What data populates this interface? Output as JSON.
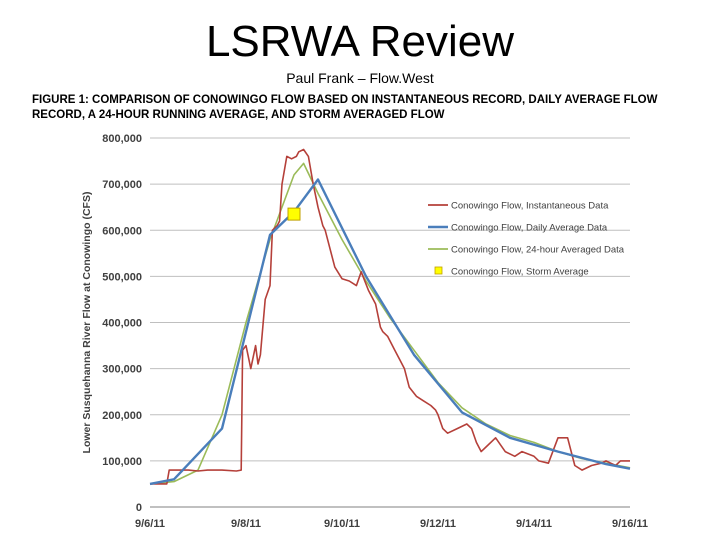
{
  "title": "LSRWA Review",
  "subtitle": "Paul Frank – Flow.West",
  "caption": "FIGURE 1: COMPARISON OF CONOWINGO FLOW BASED ON INSTANTANEOUS RECORD, DAILY AVERAGE FLOW RECORD, A 24-HOUR RUNNING AVERAGE, AND STORM AVERAGED FLOW",
  "chart_data": {
    "type": "line",
    "title": "",
    "xlabel": "",
    "ylabel": "Lower Susquehanna River Flow at Conowingo (CFS)",
    "xlim": [
      6,
      16
    ],
    "ylim": [
      0,
      800000
    ],
    "x_ticks": [
      6,
      8,
      10,
      12,
      14,
      16
    ],
    "x_tick_labels": [
      "9/6/11",
      "9/8/11",
      "9/10/11",
      "9/12/11",
      "9/14/11",
      "9/16/11"
    ],
    "y_ticks": [
      0,
      100000,
      200000,
      300000,
      400000,
      500000,
      600000,
      700000,
      800000
    ],
    "y_tick_labels": [
      "0",
      "100,000",
      "200,000",
      "300,000",
      "400,000",
      "500,000",
      "600,000",
      "700,000",
      "800,000"
    ],
    "grid": "horizontal",
    "legend_position": "right",
    "series": [
      {
        "name": "Conowingo Flow, Instantaneous Data",
        "color": "#b5403a",
        "style": "line",
        "x": [
          6.0,
          6.2,
          6.35,
          6.4,
          6.5,
          6.8,
          7.0,
          7.2,
          7.5,
          7.8,
          7.9,
          7.93,
          8.0,
          8.1,
          8.2,
          8.25,
          8.3,
          8.4,
          8.5,
          8.55,
          8.65,
          8.7,
          8.75,
          8.85,
          8.95,
          9.05,
          9.1,
          9.2,
          9.3,
          9.4,
          9.5,
          9.6,
          9.65,
          9.75,
          9.85,
          10.0,
          10.15,
          10.3,
          10.4,
          10.55,
          10.7,
          10.8,
          10.85,
          10.95,
          11.1,
          11.2,
          11.3,
          11.4,
          11.55,
          11.7,
          11.85,
          11.95,
          12.0,
          12.1,
          12.2,
          12.4,
          12.6,
          12.7,
          12.8,
          12.9,
          13.0,
          13.2,
          13.4,
          13.6,
          13.75,
          14.0,
          14.1,
          14.3,
          14.5,
          14.7,
          14.85,
          15.0,
          15.2,
          15.4,
          15.5,
          15.6,
          15.7,
          15.8,
          16.0
        ],
        "y": [
          50000,
          50000,
          50000,
          80000,
          80000,
          80000,
          78000,
          80000,
          80000,
          78000,
          80000,
          340000,
          350000,
          300000,
          350000,
          310000,
          330000,
          450000,
          480000,
          600000,
          610000,
          620000,
          700000,
          760000,
          755000,
          760000,
          770000,
          775000,
          760000,
          700000,
          650000,
          610000,
          600000,
          560000,
          520000,
          495000,
          490000,
          480000,
          510000,
          470000,
          440000,
          390000,
          380000,
          370000,
          340000,
          320000,
          300000,
          260000,
          240000,
          230000,
          220000,
          210000,
          200000,
          170000,
          160000,
          170000,
          180000,
          170000,
          140000,
          120000,
          130000,
          150000,
          120000,
          110000,
          120000,
          110000,
          100000,
          95000,
          150000,
          150000,
          90000,
          80000,
          90000,
          95000,
          100000,
          95000,
          90000,
          100000,
          100000
        ]
      },
      {
        "name": "Conowingo Flow, Daily Average Data",
        "color": "#4a7ebb",
        "style": "line",
        "x": [
          6.0,
          6.5,
          7.5,
          8.5,
          9.0,
          9.5,
          10.5,
          11.5,
          12.5,
          13.5,
          14.5,
          15.5,
          16.0
        ],
        "y": [
          50000,
          60000,
          170000,
          590000,
          640000,
          710000,
          500000,
          330000,
          205000,
          150000,
          120000,
          93000,
          83000
        ]
      },
      {
        "name": "Conowingo Flow, 24-hour Averaged Data",
        "color": "#9bbb59",
        "style": "line",
        "x": [
          6.0,
          6.5,
          7.0,
          7.5,
          8.0,
          8.5,
          9.0,
          9.2,
          9.5,
          10.0,
          10.5,
          11.0,
          11.5,
          12.0,
          12.5,
          13.0,
          13.5,
          14.0,
          14.5,
          15.0,
          15.5,
          16.0
        ],
        "y": [
          50000,
          55000,
          80000,
          200000,
          400000,
          580000,
          720000,
          745000,
          680000,
          580000,
          490000,
          410000,
          340000,
          270000,
          215000,
          180000,
          155000,
          140000,
          120000,
          105000,
          95000,
          85000
        ]
      },
      {
        "name": "Conowingo Flow, Storm Average",
        "color": "#ffff00",
        "style": "marker",
        "x": [
          9.0
        ],
        "y": [
          635000
        ]
      }
    ]
  }
}
